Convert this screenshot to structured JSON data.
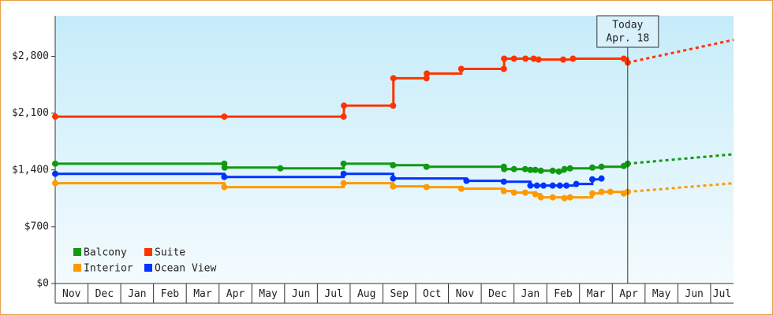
{
  "chart_data": {
    "type": "step",
    "xlim": [
      0,
      20.7
    ],
    "xticks": [
      {
        "value": 0,
        "label": "Nov"
      },
      {
        "value": 1,
        "label": "Dec"
      },
      {
        "value": 2,
        "label": "Jan"
      },
      {
        "value": 3,
        "label": "Feb"
      },
      {
        "value": 4,
        "label": "Mar"
      },
      {
        "value": 5,
        "label": "Apr"
      },
      {
        "value": 6,
        "label": "May"
      },
      {
        "value": 7,
        "label": "Jun"
      },
      {
        "value": 8,
        "label": "Jul"
      },
      {
        "value": 9,
        "label": "Aug"
      },
      {
        "value": 10,
        "label": "Sep"
      },
      {
        "value": 11,
        "label": "Oct"
      },
      {
        "value": 12,
        "label": "Nov"
      },
      {
        "value": 13,
        "label": "Dec"
      },
      {
        "value": 14,
        "label": "Jan"
      },
      {
        "value": 15,
        "label": "Feb"
      },
      {
        "value": 16,
        "label": "Mar"
      },
      {
        "value": 17,
        "label": "Apr"
      },
      {
        "value": 18,
        "label": "May"
      },
      {
        "value": 19,
        "label": "Jun"
      },
      {
        "value": 20,
        "label": "Jul"
      }
    ],
    "ylim": [
      0,
      3300
    ],
    "yticks": [
      {
        "value": 0,
        "label": "$0"
      },
      {
        "value": 700,
        "label": "$700"
      },
      {
        "value": 1400,
        "label": "$1,400"
      },
      {
        "value": 2100,
        "label": "$2,100"
      },
      {
        "value": 2800,
        "label": "$2,800"
      }
    ],
    "legend": "lower left",
    "annotation": {
      "x": 17.47,
      "lines": [
        "Today",
        "Apr. 18"
      ]
    },
    "series": [
      {
        "name": "Balcony",
        "color": "#119911",
        "x": [
          0,
          5.16,
          5.17,
          6.87,
          8.8,
          10.31,
          11.33,
          13.69,
          13.7,
          14.0,
          14.34,
          14.5,
          14.65,
          14.82,
          15.18,
          15.37,
          15.54,
          15.71,
          16.39,
          16.67,
          17.35,
          17.47
        ],
        "values": [
          1477,
          1477,
          1429,
          1419,
          1477,
          1458,
          1439,
          1439,
          1410,
          1410,
          1410,
          1400,
          1400,
          1390,
          1390,
          1380,
          1410,
          1419,
          1429,
          1439,
          1448,
          1477
        ],
        "projection": {
          "x": [
            17.47,
            20.7
          ],
          "values": [
            1477,
            1593
          ]
        }
      },
      {
        "name": "Suite",
        "color": "#ff3300",
        "x": [
          0,
          5.16,
          8.8,
          8.81,
          10.31,
          10.32,
          11.33,
          11.34,
          12.39,
          13.69,
          13.7,
          14.0,
          14.35,
          14.6,
          14.75,
          15.5,
          15.8,
          17.35,
          17.47
        ],
        "values": [
          2057,
          2057,
          2057,
          2192,
          2192,
          2530,
          2530,
          2588,
          2645,
          2645,
          2771,
          2771,
          2771,
          2771,
          2760,
          2760,
          2771,
          2771,
          2723
        ],
        "projection": {
          "x": [
            17.47,
            20.7
          ],
          "values": [
            2723,
            3003
          ]
        }
      },
      {
        "name": "Interior",
        "color": "#ff9900",
        "x": [
          0,
          5.16,
          8.8,
          10.31,
          11.33,
          12.39,
          13.69,
          14.0,
          14.34,
          14.65,
          14.82,
          15.18,
          15.54,
          15.71,
          16.39,
          16.67,
          16.94,
          17.35,
          17.47
        ],
        "values": [
          1236,
          1188,
          1236,
          1197,
          1188,
          1168,
          1139,
          1120,
          1120,
          1101,
          1062,
          1062,
          1052,
          1062,
          1110,
          1130,
          1130,
          1110,
          1130
        ],
        "projection": {
          "x": [
            17.47,
            20.7
          ],
          "values": [
            1130,
            1236
          ]
        }
      },
      {
        "name": "Ocean View",
        "color": "#0033ff",
        "x": [
          0,
          5.16,
          8.8,
          10.31,
          12.55,
          13.69,
          14.5,
          14.7,
          14.9,
          15.18,
          15.4,
          15.6,
          15.9,
          16.39,
          16.67
        ],
        "values": [
          1352,
          1313,
          1352,
          1294,
          1265,
          1255,
          1207,
          1207,
          1207,
          1207,
          1207,
          1207,
          1226,
          1284,
          1294
        ]
      }
    ]
  }
}
